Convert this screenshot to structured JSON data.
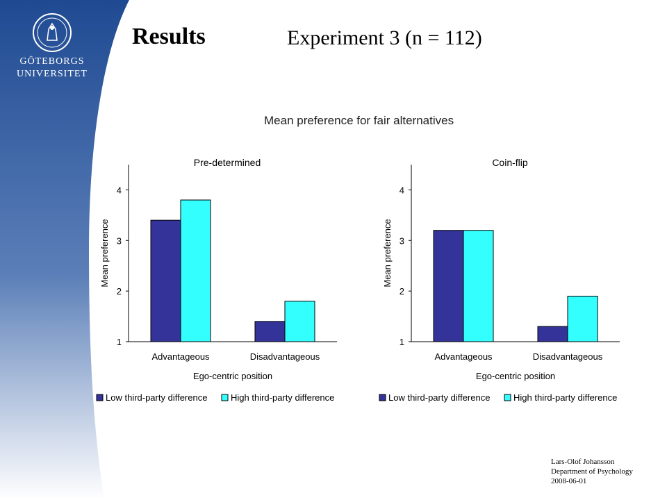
{
  "slide": {
    "title": "Results",
    "subtitle": "Experiment 3 (n = 112)",
    "logo_line1": "GÖTEBORGS",
    "logo_line2": "UNIVERSITET",
    "footer": {
      "name": "Lars-Olof Johansson",
      "dept": "Department of Psychology",
      "date": "2008-06-01"
    }
  },
  "colors": {
    "series_low": "#333399",
    "series_high": "#33ffff",
    "sidebar_dark": "#1f4a92",
    "sidebar_light": "#ffffff"
  },
  "chart_title": "Mean preference for fair alternatives",
  "chart_data": [
    {
      "type": "bar",
      "title": "Pre-determined",
      "xlabel": "Ego-centric position",
      "ylabel": "Mean preference",
      "ylim": [
        1,
        4.5
      ],
      "yticks": [
        "1",
        "2",
        "3",
        "4"
      ],
      "categories": [
        "Advantageous",
        "Disadvantageous"
      ],
      "series": [
        {
          "name": "Low third-party difference",
          "values": [
            3.4,
            1.4
          ]
        },
        {
          "name": "High third-party difference",
          "values": [
            3.8,
            1.8
          ]
        }
      ],
      "legend_position": "bottom"
    },
    {
      "type": "bar",
      "title": "Coin-flip",
      "xlabel": "Ego-centric position",
      "ylabel": "Mean preference",
      "ylim": [
        1,
        4.5
      ],
      "yticks": [
        "1",
        "2",
        "3",
        "4"
      ],
      "categories": [
        "Advantageous",
        "Disadvantageous"
      ],
      "series": [
        {
          "name": "Low third-party difference",
          "values": [
            3.2,
            1.3
          ]
        },
        {
          "name": "High third-party difference",
          "values": [
            3.2,
            1.9
          ]
        }
      ],
      "legend_position": "bottom"
    }
  ]
}
